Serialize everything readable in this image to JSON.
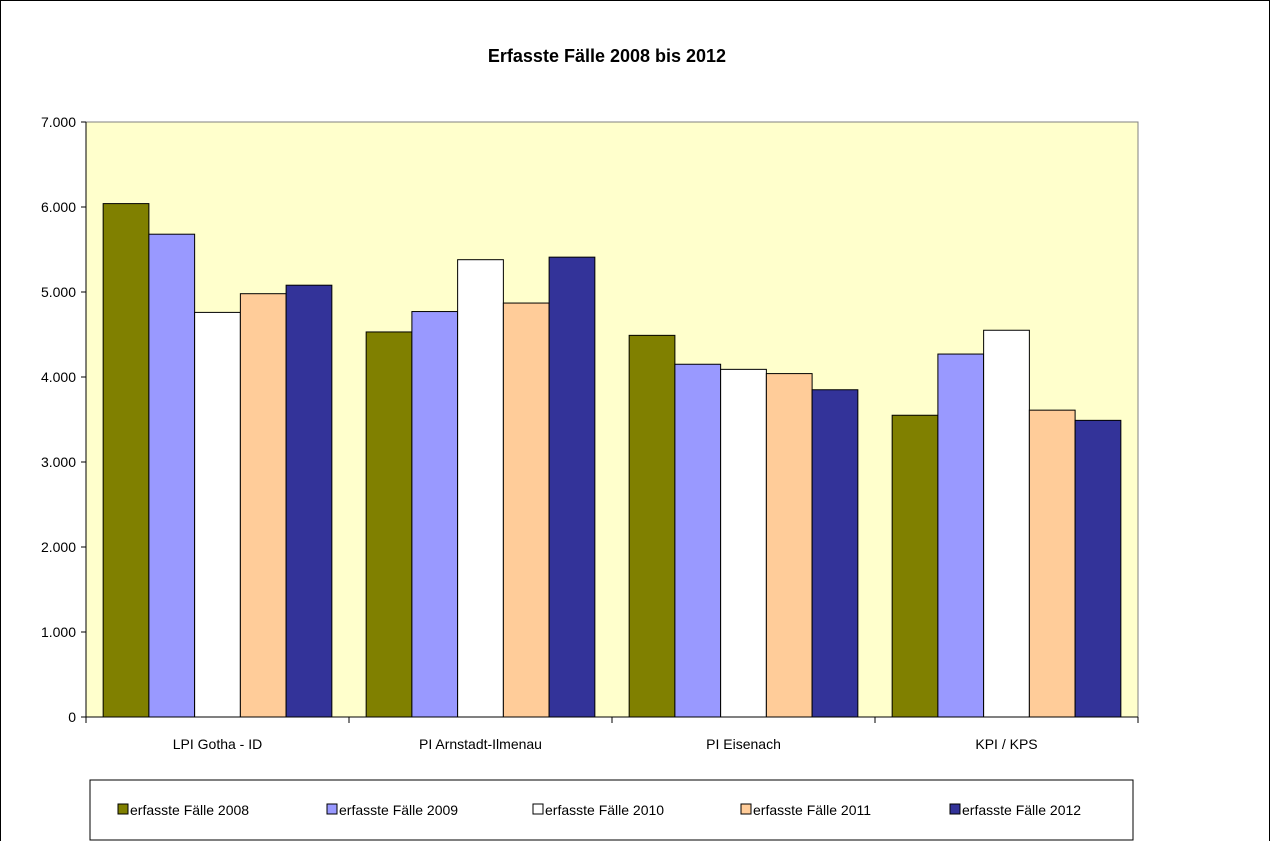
{
  "chart_data": {
    "type": "bar",
    "title": "Erfasste Fälle 2008 bis 2012",
    "xlabel": "",
    "ylabel": "",
    "ylim": [
      0,
      7000
    ],
    "yticks": [
      0,
      1000,
      2000,
      3000,
      4000,
      5000,
      6000,
      7000
    ],
    "ytick_labels": [
      "0",
      "1.000",
      "2.000",
      "3.000",
      "4.000",
      "5.000",
      "6.000",
      "7.000"
    ],
    "categories": [
      "LPI Gotha - ID",
      "PI Arnstadt-Ilmenau",
      "PI Eisenach",
      "KPI / KPS"
    ],
    "series": [
      {
        "name": "erfasste Fälle 2008",
        "color": "#808000",
        "values": [
          6040,
          4530,
          4490,
          3550
        ]
      },
      {
        "name": "erfasste Fälle 2009",
        "color": "#9999ff",
        "values": [
          5680,
          4770,
          4150,
          4270
        ]
      },
      {
        "name": "erfasste Fälle 2010",
        "color": "#ffffff",
        "values": [
          4760,
          5380,
          4090,
          4550
        ]
      },
      {
        "name": "erfasste Fälle 2011",
        "color": "#ffcc99",
        "values": [
          4980,
          4870,
          4040,
          3610
        ]
      },
      {
        "name": "erfasste Fälle 2012",
        "color": "#333399",
        "values": [
          5080,
          5410,
          3850,
          3490
        ]
      }
    ],
    "plot_background": "#ffffcc",
    "grid": false,
    "legend_position": "bottom"
  }
}
